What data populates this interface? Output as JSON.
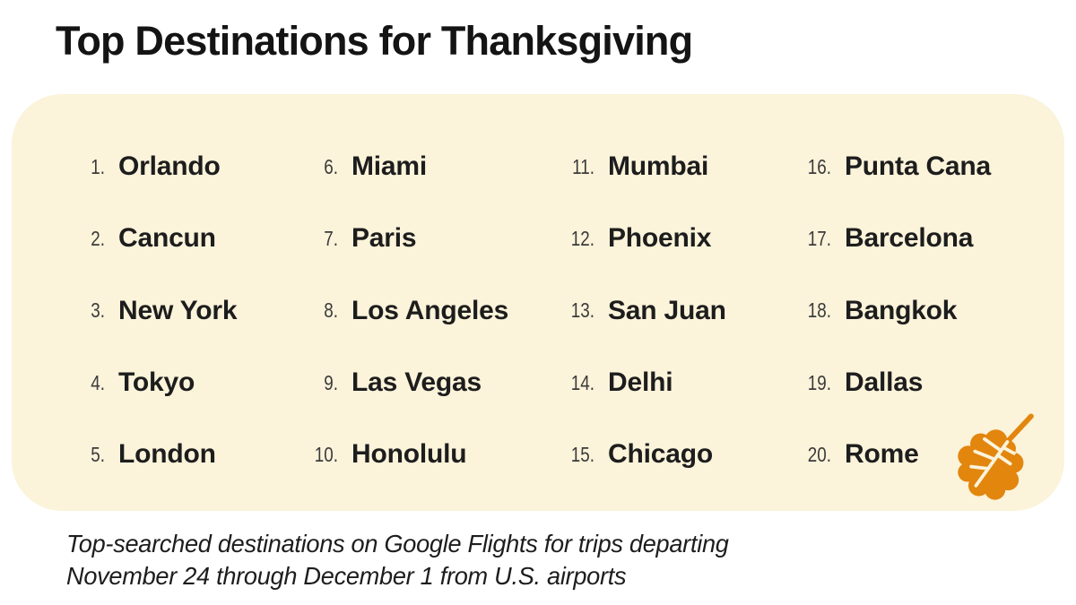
{
  "title": "Top Destinations for Thanksgiving",
  "panel": {
    "background_color": "#FBF3DA"
  },
  "destinations": [
    {
      "rank": "1.",
      "city": "Orlando"
    },
    {
      "rank": "2.",
      "city": "Cancun"
    },
    {
      "rank": "3.",
      "city": "New York"
    },
    {
      "rank": "4.",
      "city": "Tokyo"
    },
    {
      "rank": "5.",
      "city": "London"
    },
    {
      "rank": "6.",
      "city": "Miami"
    },
    {
      "rank": "7.",
      "city": "Paris"
    },
    {
      "rank": "8.",
      "city": "Los Angeles"
    },
    {
      "rank": "9.",
      "city": "Las Vegas"
    },
    {
      "rank": "10.",
      "city": "Honolulu"
    },
    {
      "rank": "11.",
      "city": "Mumbai"
    },
    {
      "rank": "12.",
      "city": "Phoenix"
    },
    {
      "rank": "13.",
      "city": "San Juan"
    },
    {
      "rank": "14.",
      "city": "Delhi"
    },
    {
      "rank": "15.",
      "city": "Chicago"
    },
    {
      "rank": "16.",
      "city": "Punta Cana"
    },
    {
      "rank": "17.",
      "city": "Barcelona"
    },
    {
      "rank": "18.",
      "city": "Bangkok"
    },
    {
      "rank": "19.",
      "city": "Dallas"
    },
    {
      "rank": "20.",
      "city": "Rome"
    }
  ],
  "leaf_icon": {
    "name": "autumn-leaf",
    "fill": "#E2860D",
    "vein": "#FBF3DA"
  },
  "footnote": {
    "line1": "Top-searched destinations on Google Flights for trips departing",
    "line2": "November 24 through December 1 from U.S. airports"
  }
}
